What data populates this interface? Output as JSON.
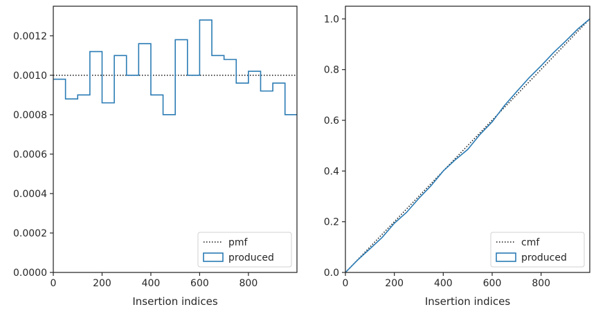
{
  "colors": {
    "produced": "#2a7bb4",
    "reference": "#111111",
    "axes": "#262626"
  },
  "chart_data": [
    {
      "type": "histogram-step",
      "xlabel": "Insertion indices",
      "ylabel": "",
      "xlim": [
        0,
        999
      ],
      "ylim": [
        0,
        0.00135
      ],
      "x_ticks": [
        "0",
        "200",
        "400",
        "600",
        "800"
      ],
      "y_ticks": [
        "0.0000",
        "0.0002",
        "0.0004",
        "0.0006",
        "0.0008",
        "0.0010",
        "0.0012"
      ],
      "bin_edges": [
        0,
        50,
        100,
        150,
        200,
        250,
        300,
        350,
        400,
        450,
        500,
        550,
        600,
        650,
        700,
        750,
        800,
        850,
        900,
        950,
        999
      ],
      "series": [
        {
          "name": "pmf",
          "style": "dotted-line",
          "values": [
            0.001
          ]
        },
        {
          "name": "produced",
          "style": "step",
          "values": [
            0.00098,
            0.00088,
            0.0009,
            0.00112,
            0.00086,
            0.0011,
            0.001,
            0.00116,
            0.0009,
            0.0008,
            0.00118,
            0.001,
            0.00128,
            0.0011,
            0.00108,
            0.00096,
            0.00102,
            0.00092,
            0.00096,
            0.0008
          ]
        }
      ],
      "legend": {
        "placement": "lower-right",
        "entries": [
          "pmf",
          "produced"
        ]
      }
    },
    {
      "type": "line",
      "xlabel": "Insertion indices",
      "ylabel": "",
      "xlim": [
        0,
        999
      ],
      "ylim": [
        0,
        1.05
      ],
      "x_ticks": [
        "0",
        "200",
        "400",
        "600",
        "800"
      ],
      "y_ticks": [
        "0.0",
        "0.2",
        "0.4",
        "0.6",
        "0.8",
        "1.0"
      ],
      "series": [
        {
          "name": "cmf",
          "style": "dotted-line",
          "x": [
            0,
            999
          ],
          "y": [
            0,
            1.0
          ]
        },
        {
          "name": "produced",
          "style": "step",
          "x": [
            0,
            50,
            100,
            150,
            200,
            250,
            300,
            350,
            400,
            450,
            500,
            550,
            600,
            650,
            700,
            750,
            800,
            850,
            900,
            950,
            999
          ],
          "y": [
            0,
            0.049,
            0.093,
            0.138,
            0.194,
            0.237,
            0.292,
            0.342,
            0.4,
            0.445,
            0.485,
            0.544,
            0.594,
            0.658,
            0.713,
            0.767,
            0.815,
            0.866,
            0.912,
            0.96,
            1.0
          ]
        }
      ],
      "legend": {
        "placement": "lower-right",
        "entries": [
          "cmf",
          "produced"
        ]
      }
    }
  ]
}
